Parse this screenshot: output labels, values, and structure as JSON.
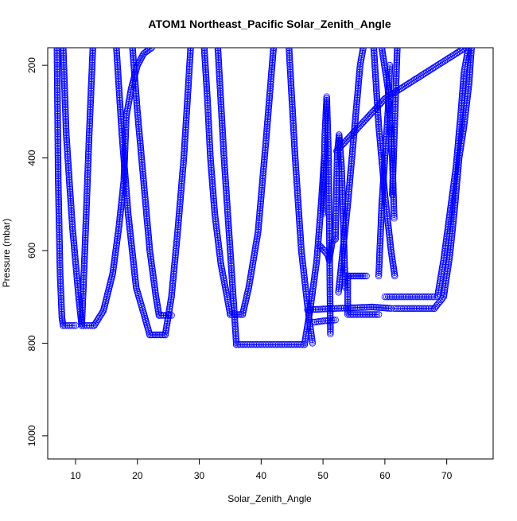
{
  "chart_data": {
    "type": "scatter",
    "title": "ATOM1 Northeast_Pacific Solar_Zenith_Angle",
    "xlabel": "Solar_Zenith_Angle",
    "ylabel": "Pressure (mbar)",
    "xlim": [
      5.5,
      77.5
    ],
    "ylim": [
      1050,
      162
    ],
    "y_reversed": true,
    "x_ticks": [
      10,
      20,
      30,
      40,
      50,
      60,
      70
    ],
    "y_ticks": [
      200,
      400,
      600,
      800,
      1000
    ],
    "grid": false,
    "legend": "none",
    "marker": "open-circle",
    "series_color": "#0000ff",
    "series": [
      {
        "segments": [
          {
            "x": [
              7.0,
              7.2,
              7.5,
              7.8,
              8.0
            ],
            "y": [
              162,
              450,
              650,
              745,
              762
            ]
          },
          {
            "x": [
              8.0,
              10.0
            ],
            "y": [
              762,
              762
            ]
          },
          {
            "x": [
              8.0,
              8.5,
              9.5,
              10.5,
              11.0
            ],
            "y": [
              162,
              350,
              550,
              700,
              762
            ]
          },
          {
            "x": [
              11.0,
              13.0
            ],
            "y": [
              762,
              762
            ]
          },
          {
            "x": [
              11.0,
              11.5,
              12.2,
              12.8
            ],
            "y": [
              762,
              600,
              350,
              162
            ]
          },
          {
            "x": [
              13.0,
              14.5,
              16.0,
              17.0,
              17.8,
              18.2
            ],
            "y": [
              762,
              730,
              650,
              550,
              450,
              310
            ]
          },
          {
            "x": [
              16.6,
              17.5,
              18.5,
              19.8,
              21.0,
              22.0
            ],
            "y": [
              162,
              350,
              520,
              680,
              735,
              782
            ]
          },
          {
            "x": [
              22.0,
              24.5
            ],
            "y": [
              782,
              782
            ]
          },
          {
            "x": [
              18.2,
              19.0,
              20.0,
              21.0,
              22.3
            ],
            "y": [
              310,
              250,
              200,
              175,
              162
            ]
          },
          {
            "x": [
              19.2,
              20.0,
              21.0,
              22.0,
              23.0,
              23.5
            ],
            "y": [
              162,
              300,
              450,
              600,
              700,
              740
            ]
          },
          {
            "x": [
              23.5,
              25.5
            ],
            "y": [
              740,
              740
            ]
          },
          {
            "x": [
              24.5,
              25.5,
              26.5,
              27.5,
              28.2,
              28.6
            ],
            "y": [
              782,
              700,
              560,
              400,
              250,
              162
            ]
          },
          {
            "x": [
              30.8,
              31.3,
              31.8,
              32.5,
              33.5,
              34.5,
              35.0
            ],
            "y": [
              162,
              270,
              400,
              520,
              630,
              700,
              738
            ]
          },
          {
            "x": [
              35.0,
              37.0
            ],
            "y": [
              738,
              738
            ]
          },
          {
            "x": [
              33.0,
              34.0,
              35.0,
              36.0
            ],
            "y": [
              162,
              400,
              600,
              803
            ]
          },
          {
            "x": [
              36.0,
              47.0
            ],
            "y": [
              803,
              803
            ]
          },
          {
            "x": [
              37.0,
              38.0,
              39.5,
              40.8,
              42.0
            ],
            "y": [
              738,
              680,
              560,
              360,
              162
            ]
          },
          {
            "x": [
              44.5,
              45.5,
              46.5,
              47.5,
              48.3
            ],
            "y": [
              162,
              400,
              600,
              720,
              800
            ]
          },
          {
            "x": [
              47.0,
              48.0,
              49.0,
              49.7,
              50.2
            ],
            "y": [
              803,
              720,
              620,
              500,
              400
            ]
          },
          {
            "x": [
              47.5,
              52.0,
              58.0,
              61.0
            ],
            "y": [
              728,
              725,
              722,
              725
            ]
          },
          {
            "x": [
              48.5,
              50.0,
              52.0
            ],
            "y": [
              755,
              752,
              750
            ]
          },
          {
            "x": [
              49.5,
              50.2,
              50.8,
              51.0,
              51.5,
              52.0
            ],
            "y": [
              590,
              600,
              610,
              620,
              580,
              575
            ]
          },
          {
            "x": [
              50.0,
              50.3,
              50.6,
              50.9,
              51.2
            ],
            "y": [
              520,
              350,
              268,
              400,
              780
            ]
          },
          {
            "x": [
              52.0,
              52.3,
              52.6,
              53.0,
              53.6
            ],
            "y": [
              575,
              390,
              350,
              420,
              680
            ]
          },
          {
            "x": [
              52.2,
              60.0,
              73.0
            ],
            "y": [
              385,
              272,
              162
            ]
          },
          {
            "x": [
              54.0,
              57.0
            ],
            "y": [
              655,
              655
            ]
          },
          {
            "x": [
              54.0,
              54.0,
              59.0
            ],
            "y": [
              655,
              738,
              738
            ]
          },
          {
            "x": [
              52.5,
              54.0,
              55.0,
              56.0,
              56.5
            ],
            "y": [
              690,
              500,
              350,
              200,
              162
            ]
          },
          {
            "x": [
              58.2,
              59.0,
              60.0,
              61.0,
              61.6
            ],
            "y": [
              162,
              330,
              480,
              600,
              655
            ]
          },
          {
            "x": [
              59.0,
              59.5,
              60.0,
              60.5,
              60.8
            ],
            "y": [
              655,
              500,
              400,
              300,
              200
            ]
          },
          {
            "x": [
              59.5,
              60.5,
              61.2,
              61.5
            ],
            "y": [
              162,
              250,
              400,
              530
            ]
          },
          {
            "x": [
              61.2,
              62.0
            ],
            "y": [
              480,
              162
            ]
          },
          {
            "x": [
              60.0,
              68.0
            ],
            "y": [
              700,
              700
            ]
          },
          {
            "x": [
              61.5,
              63.0,
              68.0
            ],
            "y": [
              725,
              725,
              725
            ]
          },
          {
            "x": [
              68.0,
              69.5,
              70.5,
              71.2,
              72.0,
              72.8,
              73.6,
              74.0
            ],
            "y": [
              725,
              700,
              610,
              520,
              400,
              330,
              240,
              162
            ]
          },
          {
            "x": [
              68.5,
              69.5,
              70.5,
              71.5,
              72.3,
              72.8,
              73.5
            ],
            "y": [
              700,
              620,
              520,
              420,
              300,
              215,
              162
            ]
          }
        ]
      }
    ]
  }
}
